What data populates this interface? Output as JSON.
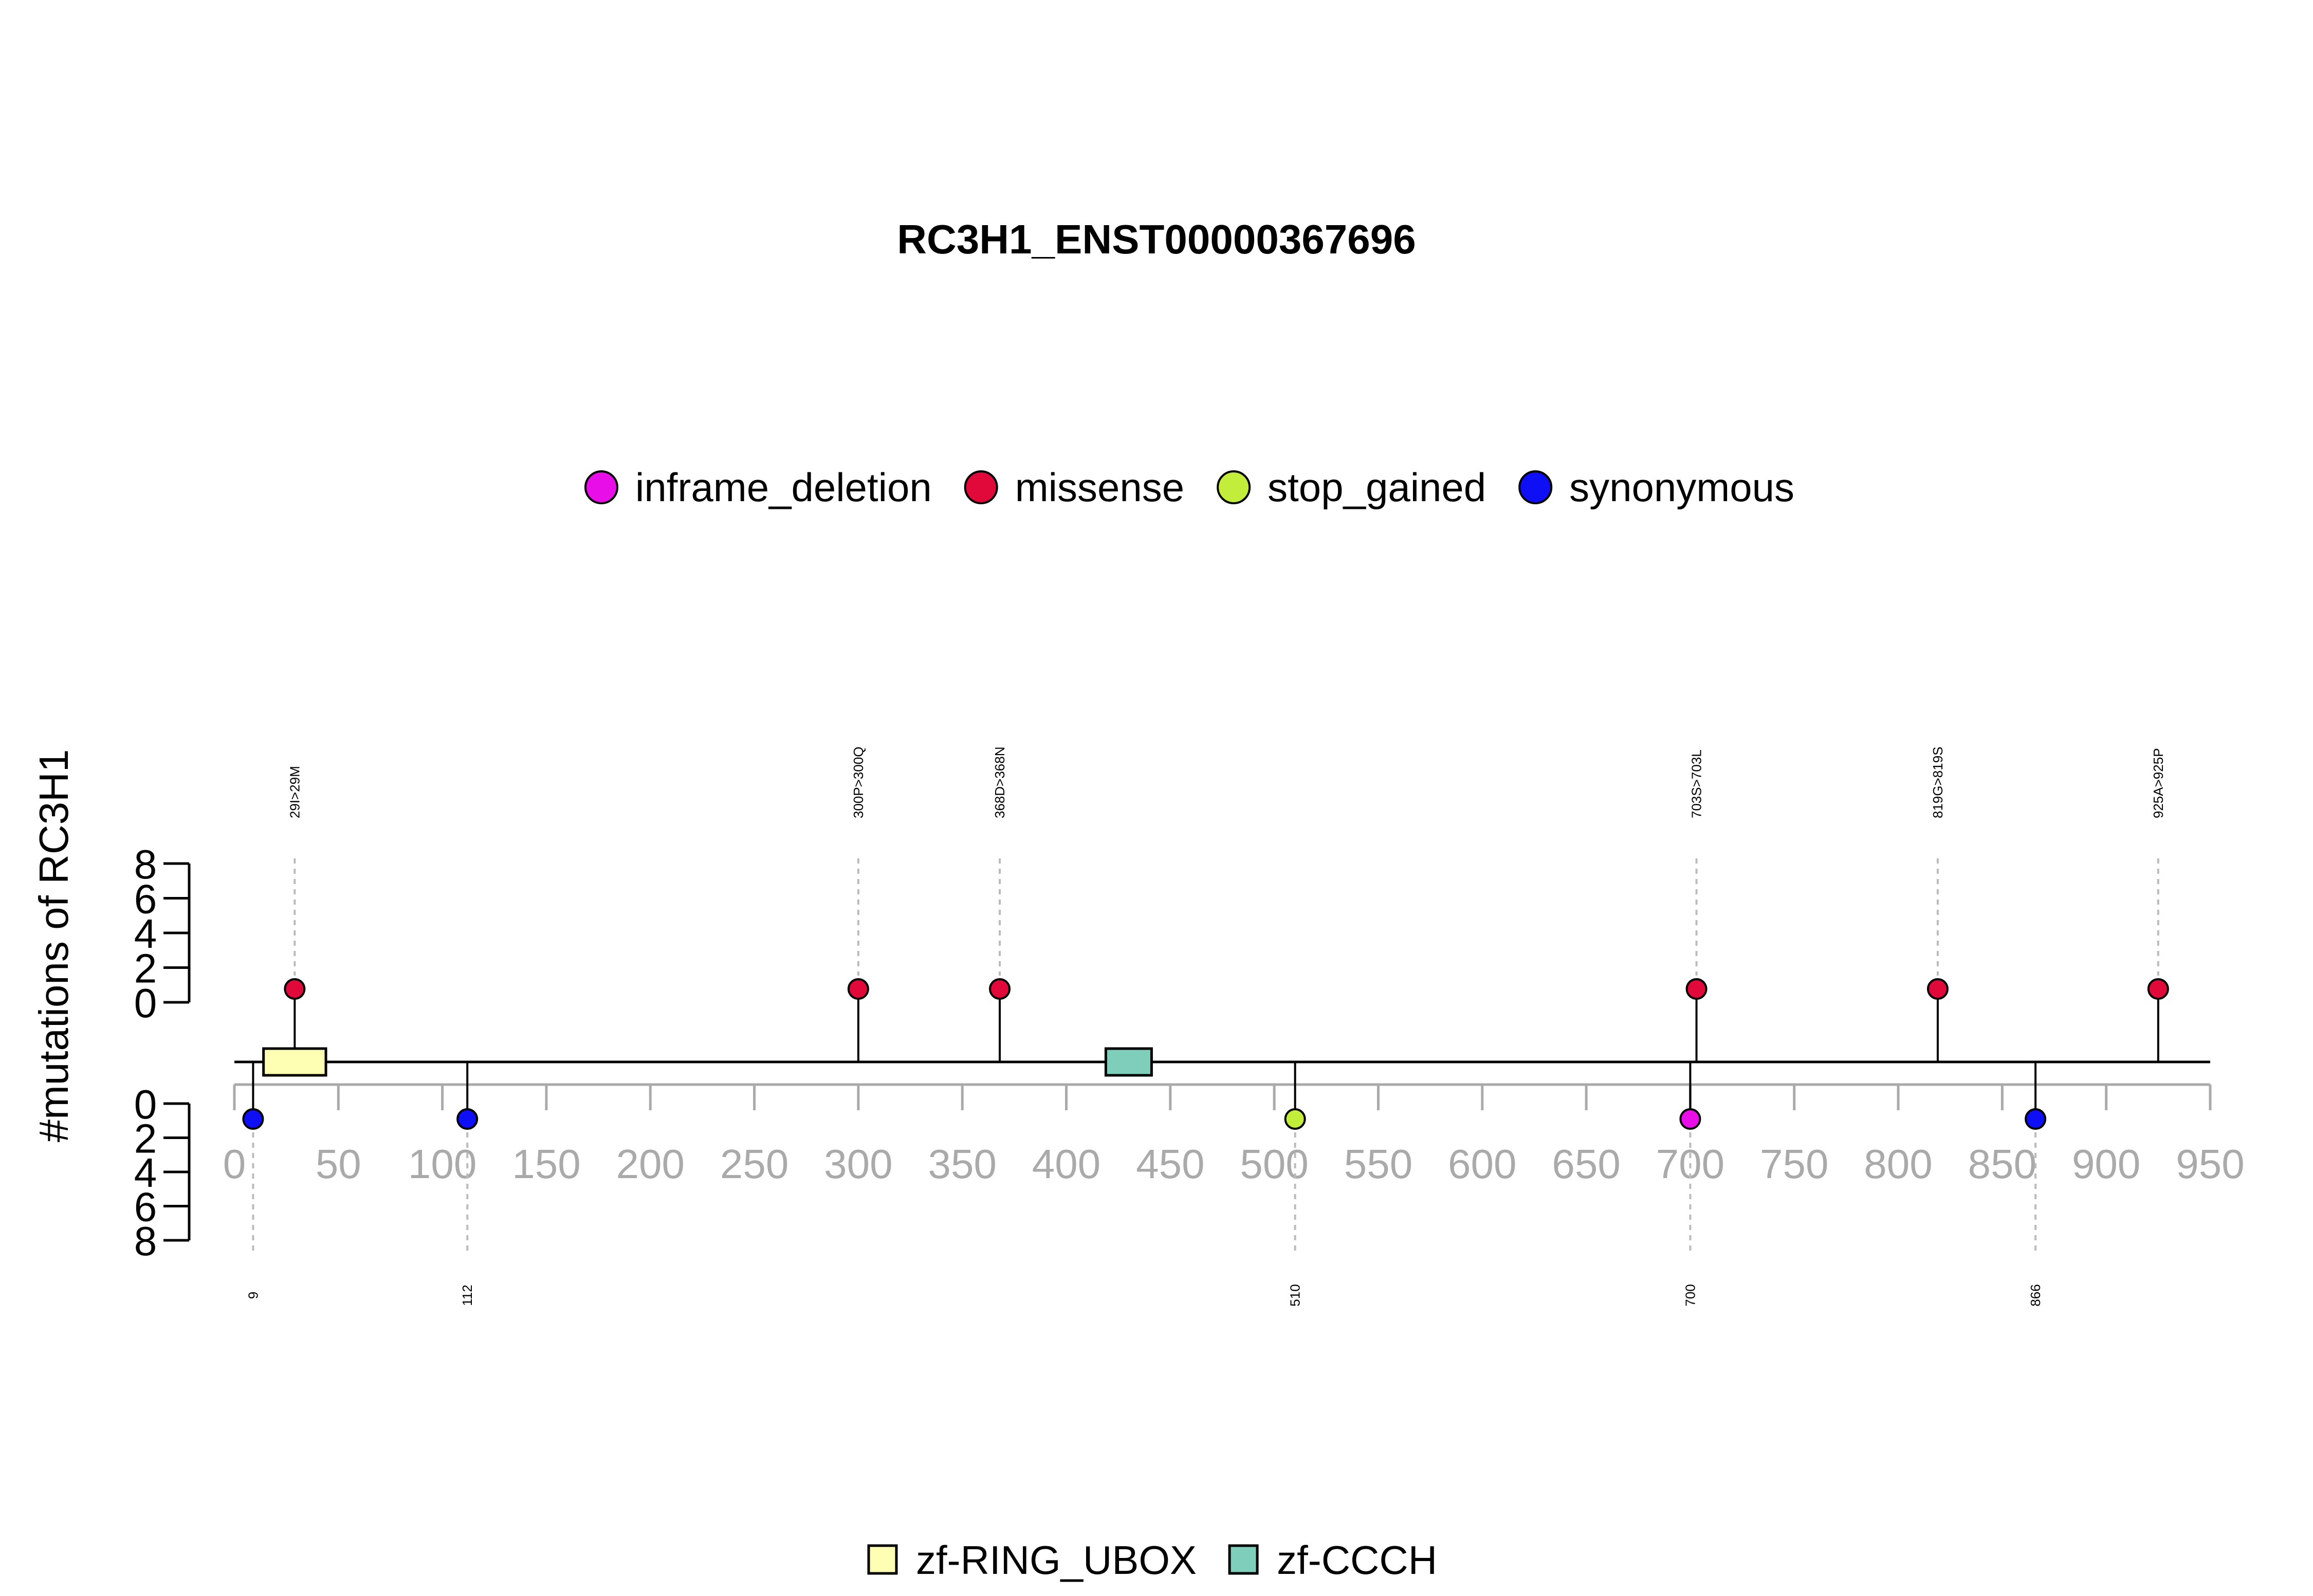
{
  "chart_data": {
    "type": "lollipop",
    "title": "RC3H1_ENST00000367696",
    "ylabel": "#mutations of RC3H1",
    "xlim": [
      0,
      950
    ],
    "x_ticks": [
      0,
      50,
      100,
      150,
      200,
      250,
      300,
      350,
      400,
      450,
      500,
      550,
      600,
      650,
      700,
      750,
      800,
      850,
      900,
      950
    ],
    "y_ticks_upper": [
      0,
      2,
      4,
      6,
      8
    ],
    "y_ticks_lower": [
      0,
      2,
      4,
      6,
      8
    ],
    "mutation_types": [
      {
        "name": "inframe_deletion",
        "color": "#e80ee8"
      },
      {
        "name": "missense",
        "color": "#e0093a"
      },
      {
        "name": "stop_gained",
        "color": "#c2ed3a"
      },
      {
        "name": "synonymous",
        "color": "#0f0ff5"
      }
    ],
    "domains": [
      {
        "name": "zf-RING_UBOX",
        "start": 14,
        "end": 44,
        "color": "#ffffb3"
      },
      {
        "name": "zf-CCCH",
        "start": 419,
        "end": 441,
        "color": "#7fcdbb"
      }
    ],
    "mutations_above": [
      {
        "position": 29,
        "label": "29I>29M",
        "type": "missense"
      },
      {
        "position": 300,
        "label": "300P>300Q",
        "type": "missense"
      },
      {
        "position": 368,
        "label": "368D>368N",
        "type": "missense"
      },
      {
        "position": 703,
        "label": "703S>703L",
        "type": "missense"
      },
      {
        "position": 819,
        "label": "819G>819S",
        "type": "missense"
      },
      {
        "position": 925,
        "label": "925A>925P",
        "type": "missense"
      }
    ],
    "mutations_below": [
      {
        "position": 9,
        "label": "9",
        "type": "synonymous"
      },
      {
        "position": 112,
        "label": "112",
        "type": "synonymous"
      },
      {
        "position": 510,
        "label": "510",
        "type": "stop_gained"
      },
      {
        "position": 700,
        "label": "700",
        "type": "inframe_deletion"
      },
      {
        "position": 866,
        "label": "866",
        "type": "synonymous"
      }
    ]
  }
}
